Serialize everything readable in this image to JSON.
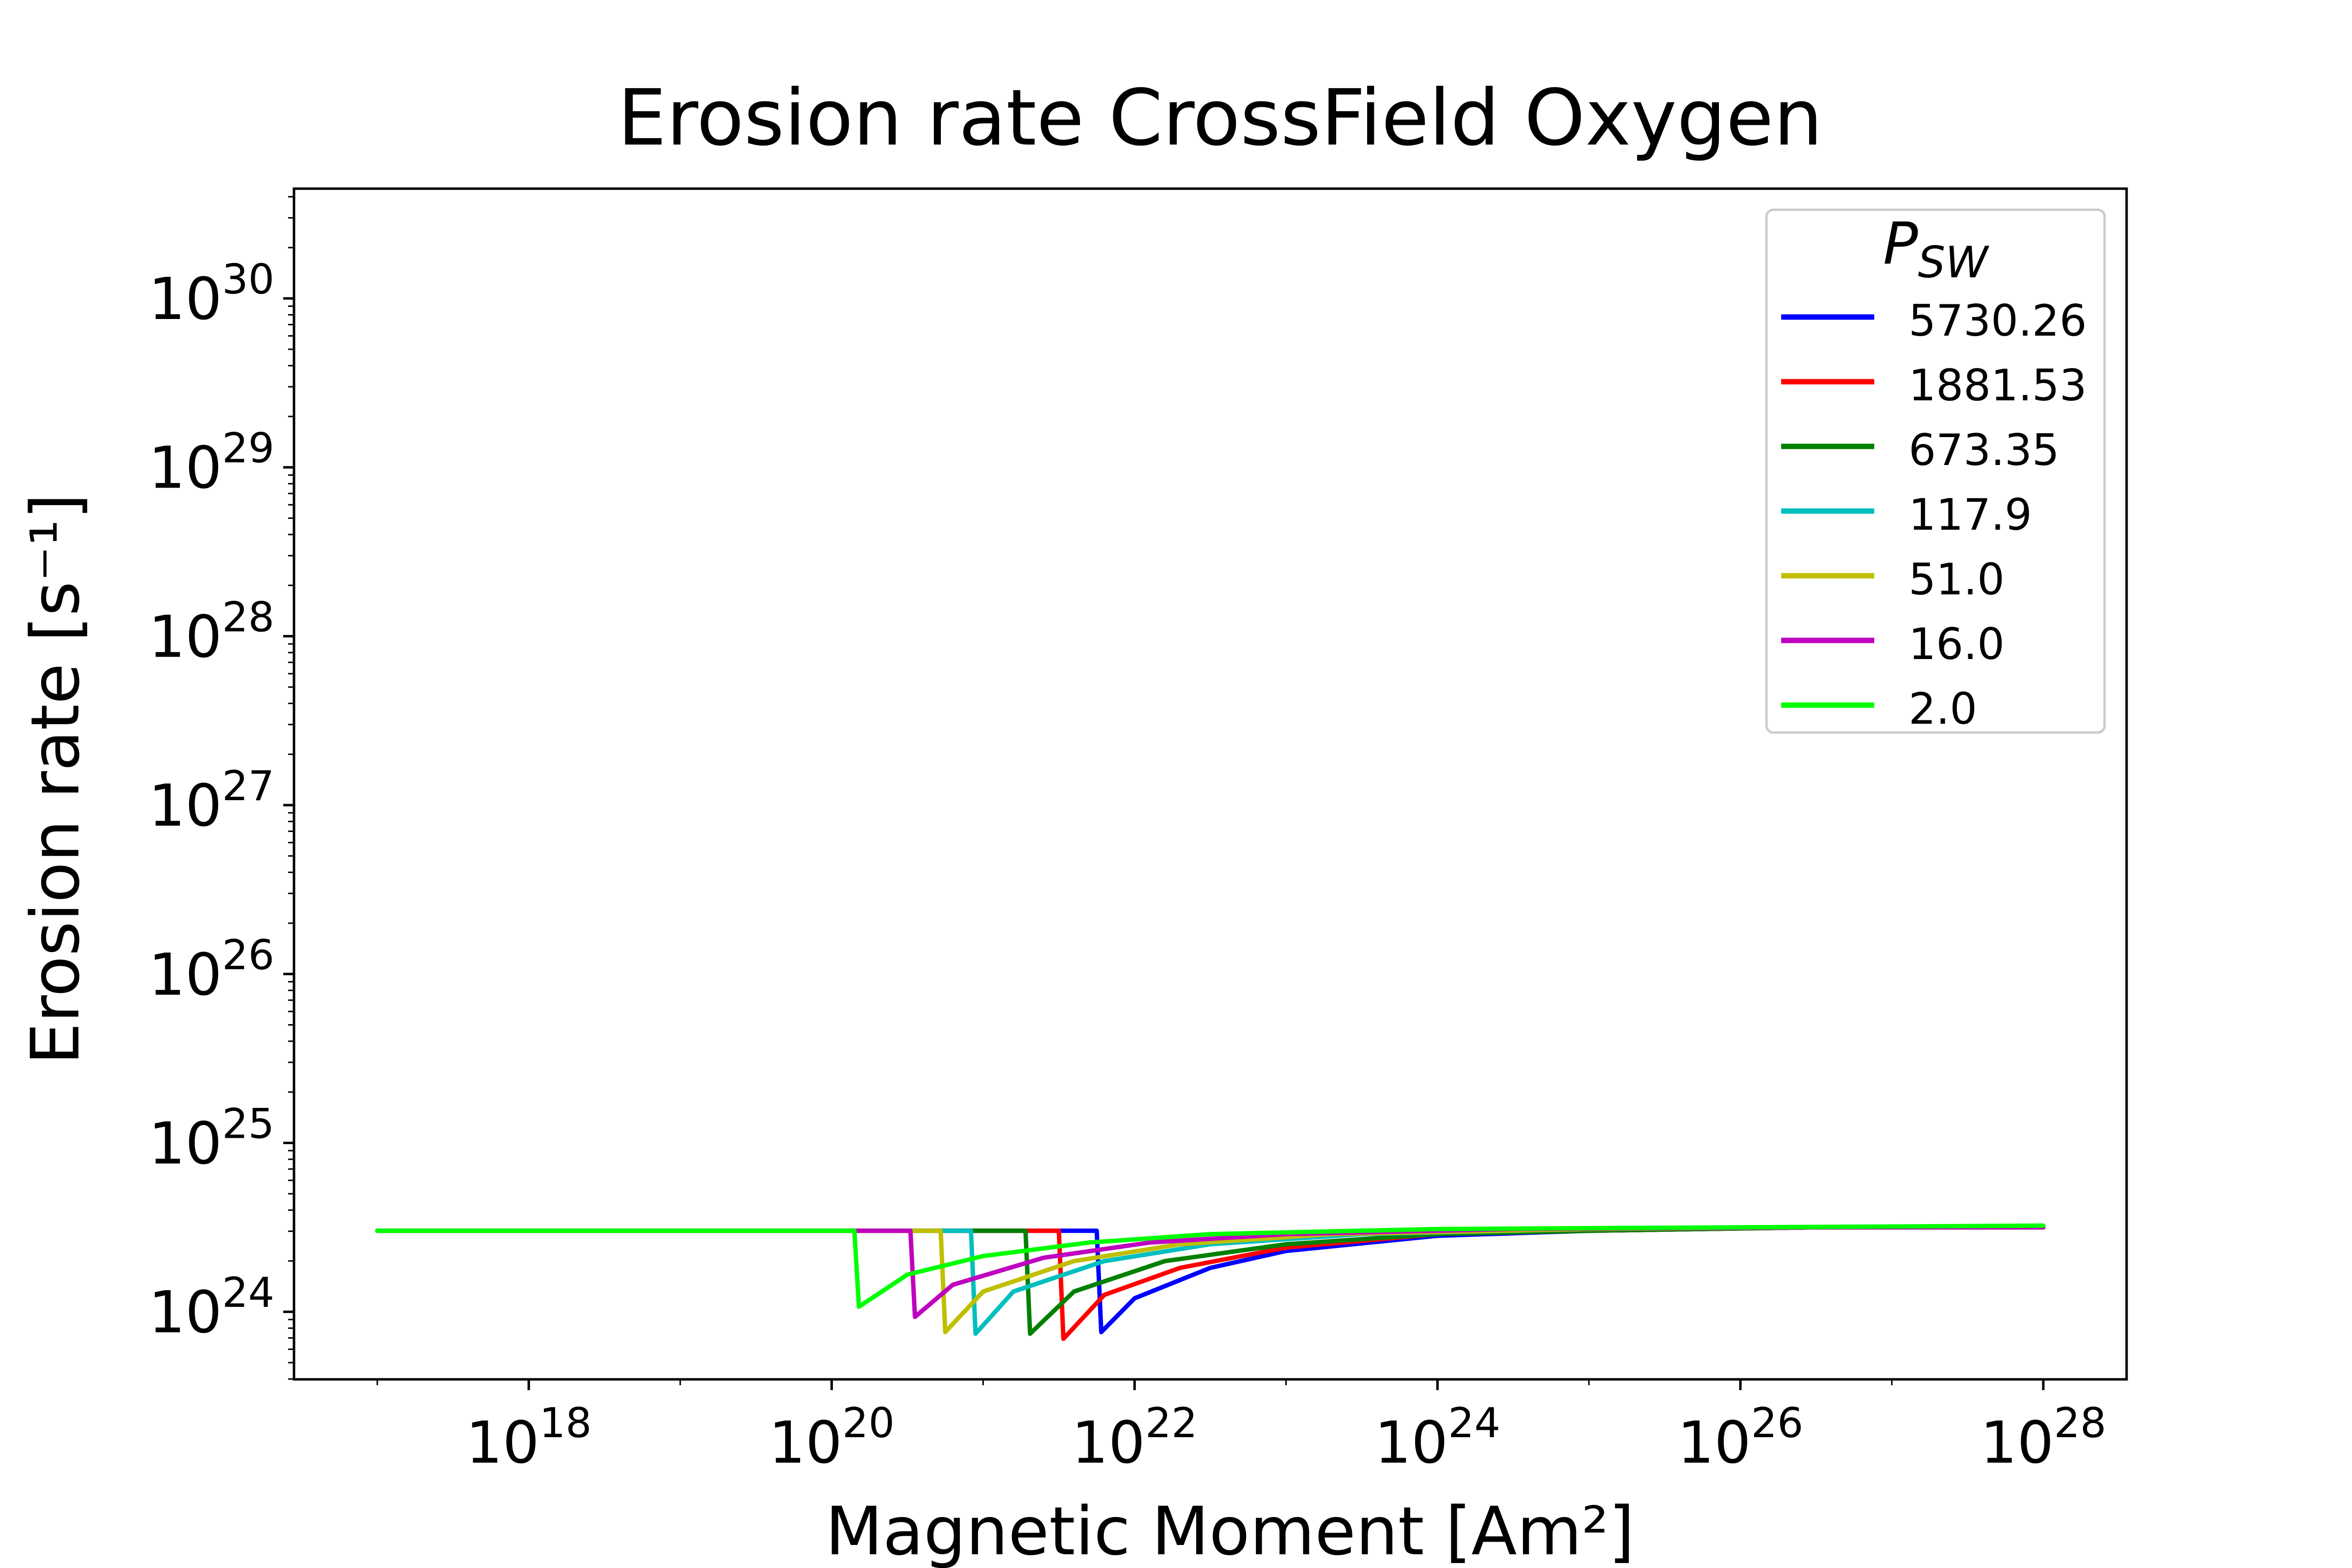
{
  "chart_data": {
    "type": "line",
    "title": "Erosion rate CrossField Oxygen",
    "xlabel": "Magnetic Moment [Am²]",
    "ylabel": "Erosion rate [s⁻¹]",
    "xscale": "log",
    "yscale": "log",
    "xlim_log10": [
      16.45,
      28.55
    ],
    "ylim_log10": [
      23.6,
      30.65
    ],
    "xticks": [
      {
        "exp": 18,
        "base": "10",
        "sup": "18"
      },
      {
        "exp": 20,
        "base": "10",
        "sup": "20"
      },
      {
        "exp": 22,
        "base": "10",
        "sup": "22"
      },
      {
        "exp": 24,
        "base": "10",
        "sup": "24"
      },
      {
        "exp": 26,
        "base": "10",
        "sup": "26"
      },
      {
        "exp": 28,
        "base": "10",
        "sup": "28"
      }
    ],
    "yticks": [
      {
        "exp": 24,
        "base": "10",
        "sup": "24"
      },
      {
        "exp": 25,
        "base": "10",
        "sup": "25"
      },
      {
        "exp": 26,
        "base": "10",
        "sup": "26"
      },
      {
        "exp": 27,
        "base": "10",
        "sup": "27"
      },
      {
        "exp": 28,
        "base": "10",
        "sup": "28"
      },
      {
        "exp": 29,
        "base": "10",
        "sup": "29"
      },
      {
        "exp": 30,
        "base": "10",
        "sup": "30"
      }
    ],
    "legend": {
      "title": "P_SW",
      "placement": "top-right"
    },
    "series": [
      {
        "name": "5730.26",
        "color": "#0000ff",
        "x_log10": [
          17.0,
          21.75,
          21.78,
          22.0,
          22.5,
          23.0,
          24.0,
          25.0,
          26.5,
          28.0
        ],
        "y_log10": [
          24.48,
          24.48,
          23.88,
          24.08,
          24.26,
          24.36,
          24.45,
          24.48,
          24.5,
          24.5
        ]
      },
      {
        "name": "1881.53",
        "color": "#ff0000",
        "x_log10": [
          17.0,
          21.5,
          21.53,
          21.8,
          22.3,
          23.0,
          24.0,
          25.0,
          26.5,
          28.0
        ],
        "y_log10": [
          24.48,
          24.48,
          23.84,
          24.1,
          24.26,
          24.38,
          24.46,
          24.48,
          24.5,
          24.5
        ]
      },
      {
        "name": "673.35",
        "color": "#008000",
        "x_log10": [
          17.0,
          21.28,
          21.31,
          21.6,
          22.2,
          23.0,
          24.0,
          25.0,
          26.5,
          28.0
        ],
        "y_log10": [
          24.48,
          24.48,
          23.87,
          24.12,
          24.3,
          24.4,
          24.46,
          24.48,
          24.5,
          24.5
        ]
      },
      {
        "name": "117.9",
        "color": "#00bfbf",
        "x_log10": [
          17.0,
          20.92,
          20.95,
          21.2,
          21.8,
          22.5,
          23.5,
          25.0,
          26.5,
          28.0
        ],
        "y_log10": [
          24.48,
          24.48,
          23.87,
          24.12,
          24.3,
          24.4,
          24.46,
          24.49,
          24.5,
          24.5
        ]
      },
      {
        "name": "51.0",
        "color": "#bfbf00",
        "x_log10": [
          17.0,
          20.72,
          20.75,
          21.0,
          21.6,
          22.3,
          23.3,
          25.0,
          26.5,
          28.0
        ],
        "y_log10": [
          24.48,
          24.48,
          23.88,
          24.12,
          24.3,
          24.4,
          24.46,
          24.49,
          24.5,
          24.5
        ]
      },
      {
        "name": "16.0",
        "color": "#bf00bf",
        "x_log10": [
          17.0,
          20.52,
          20.55,
          20.8,
          21.4,
          22.1,
          23.0,
          24.5,
          26.5,
          28.0
        ],
        "y_log10": [
          24.48,
          24.48,
          23.97,
          24.16,
          24.32,
          24.41,
          24.46,
          24.49,
          24.5,
          24.5
        ]
      },
      {
        "name": "2.0",
        "color": "#00ff00",
        "x_log10": [
          17.0,
          20.15,
          20.18,
          20.5,
          21.0,
          21.7,
          22.5,
          24.0,
          26.0,
          28.0
        ],
        "y_log10": [
          24.48,
          24.48,
          24.03,
          24.22,
          24.33,
          24.41,
          24.46,
          24.49,
          24.5,
          24.51
        ]
      }
    ]
  }
}
